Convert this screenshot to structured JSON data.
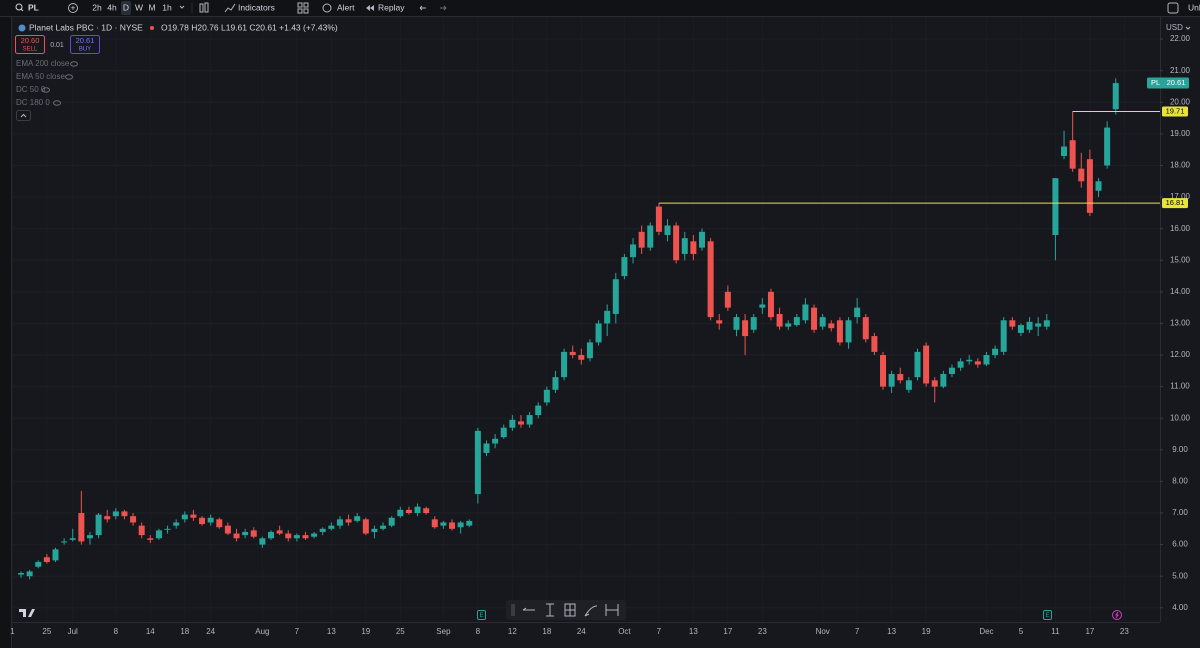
{
  "toolbar": {
    "symbol": "PL",
    "intervals": [
      "2h",
      "4h",
      "D",
      "W",
      "M",
      "1h"
    ],
    "indicators": "Indicators",
    "alert": "Alert",
    "replay": "Replay",
    "unlock": "Unl"
  },
  "legend": {
    "title": "Planet Labs PBC · 1D · NYSE",
    "ohlc": "O19.78 H20.76 L19.61 C20.61 +1.43 (+7.43%)",
    "sell_price": "20.60",
    "sell": "SELL",
    "spread": "0.01",
    "buy_price": "20.61",
    "buy": "BUY",
    "studies": [
      "EMA 200 close",
      "EMA 50 close",
      "DC 50 0",
      "DC 180 0"
    ]
  },
  "currency": "USD",
  "events": {
    "earnings": "E"
  },
  "chart_data": {
    "type": "candlestick",
    "symbol": "PL",
    "up_color": "#26a69a",
    "down_color": "#ef5350",
    "level_color": "#e8e337",
    "grid": true,
    "ylim": [
      3.55,
      22.7
    ],
    "yticks": [
      {
        "value": 4,
        "label": "4.00"
      },
      {
        "value": 5,
        "label": "5.00"
      },
      {
        "value": 6,
        "label": "6.00"
      },
      {
        "value": 7,
        "label": "7.00"
      },
      {
        "value": 8,
        "label": "8.00"
      },
      {
        "value": 9,
        "label": "9.00"
      },
      {
        "value": 10,
        "label": "10.00"
      },
      {
        "value": 11,
        "label": "11.00"
      },
      {
        "value": 12,
        "label": "12.00"
      },
      {
        "value": 13,
        "label": "13.00"
      },
      {
        "value": 14,
        "label": "14.00"
      },
      {
        "value": 15,
        "label": "15.00"
      },
      {
        "value": 16,
        "label": "16.00"
      },
      {
        "value": 17,
        "label": "17.00"
      },
      {
        "value": 18,
        "label": "18.00"
      },
      {
        "value": 19,
        "label": "19.00"
      },
      {
        "value": 20,
        "label": "20.00"
      },
      {
        "value": 21,
        "label": "21.00"
      },
      {
        "value": 22,
        "label": "22.00"
      }
    ],
    "levels": [
      16.81,
      19.71
    ],
    "categories": [
      "1",
      null,
      null,
      null,
      "25",
      null,
      null,
      "Jul",
      null,
      null,
      null,
      null,
      "8",
      null,
      null,
      null,
      "14",
      null,
      null,
      null,
      "18",
      null,
      null,
      "24",
      null,
      null,
      null,
      null,
      null,
      "Aug",
      null,
      null,
      null,
      "7",
      null,
      null,
      null,
      "13",
      null,
      null,
      null,
      "19",
      null,
      null,
      null,
      "25",
      null,
      null,
      null,
      null,
      "Sep",
      null,
      null,
      null,
      "8",
      null,
      null,
      null,
      "12",
      null,
      null,
      null,
      "18",
      null,
      null,
      null,
      "24",
      null,
      null,
      null,
      null,
      "Oct",
      null,
      null,
      null,
      "7",
      null,
      null,
      null,
      "13",
      null,
      null,
      null,
      "17",
      null,
      null,
      null,
      "23",
      null,
      null,
      null,
      null,
      null,
      null,
      "Nov",
      null,
      null,
      null,
      "7",
      null,
      null,
      null,
      "13",
      null,
      null,
      null,
      "19",
      null,
      null,
      null,
      null,
      null,
      null,
      "Dec",
      null,
      null,
      null,
      "5",
      null,
      null,
      null,
      "11",
      null,
      null,
      null,
      "17",
      null,
      null,
      null,
      "23",
      null
    ],
    "ohlc": [
      null,
      [
        5.05,
        5.15,
        4.95,
        5.1
      ],
      [
        5.0,
        5.2,
        4.9,
        5.15
      ],
      [
        5.3,
        5.5,
        5.25,
        5.45
      ],
      [
        5.6,
        5.7,
        5.4,
        5.45
      ],
      [
        5.5,
        5.9,
        5.45,
        5.85
      ],
      [
        6.1,
        6.2,
        6.0,
        6.1
      ],
      [
        6.15,
        6.5,
        6.1,
        6.2
      ],
      [
        7.0,
        7.7,
        6.0,
        6.1
      ],
      [
        6.2,
        6.4,
        6.0,
        6.3
      ],
      [
        6.3,
        7.0,
        6.2,
        6.95
      ],
      [
        6.9,
        7.1,
        6.7,
        6.8
      ],
      [
        6.9,
        7.15,
        6.8,
        7.05
      ],
      [
        7.05,
        7.1,
        6.8,
        6.9
      ],
      [
        6.9,
        7.0,
        6.6,
        6.7
      ],
      [
        6.6,
        6.7,
        6.2,
        6.3
      ],
      [
        6.2,
        6.3,
        6.05,
        6.15
      ],
      [
        6.2,
        6.5,
        6.15,
        6.45
      ],
      [
        6.5,
        6.6,
        6.35,
        6.5
      ],
      [
        6.6,
        6.8,
        6.5,
        6.7
      ],
      [
        6.8,
        7.05,
        6.7,
        6.95
      ],
      [
        6.95,
        7.1,
        6.75,
        6.85
      ],
      [
        6.85,
        6.9,
        6.6,
        6.65
      ],
      [
        6.7,
        6.95,
        6.6,
        6.85
      ],
      [
        6.8,
        6.85,
        6.5,
        6.55
      ],
      [
        6.6,
        6.7,
        6.3,
        6.35
      ],
      [
        6.35,
        6.5,
        6.1,
        6.2
      ],
      [
        6.3,
        6.5,
        6.2,
        6.4
      ],
      [
        6.45,
        6.55,
        6.2,
        6.25
      ],
      [
        6.0,
        6.25,
        5.9,
        6.2
      ],
      [
        6.2,
        6.45,
        6.15,
        6.4
      ],
      [
        6.45,
        6.6,
        6.3,
        6.35
      ],
      [
        6.35,
        6.45,
        6.1,
        6.2
      ],
      [
        6.2,
        6.35,
        6.1,
        6.3
      ],
      [
        6.3,
        6.4,
        6.15,
        6.2
      ],
      [
        6.25,
        6.4,
        6.2,
        6.35
      ],
      [
        6.4,
        6.55,
        6.3,
        6.5
      ],
      [
        6.5,
        6.7,
        6.45,
        6.6
      ],
      [
        6.6,
        6.9,
        6.5,
        6.8
      ],
      [
        6.8,
        6.95,
        6.6,
        6.7
      ],
      [
        6.75,
        7.0,
        6.7,
        6.9
      ],
      [
        6.8,
        6.85,
        6.3,
        6.35
      ],
      [
        6.4,
        6.6,
        6.2,
        6.5
      ],
      [
        6.5,
        6.7,
        6.45,
        6.6
      ],
      [
        6.6,
        6.9,
        6.55,
        6.85
      ],
      [
        6.9,
        7.2,
        6.85,
        7.1
      ],
      [
        7.1,
        7.2,
        6.95,
        7.0
      ],
      [
        7.0,
        7.3,
        6.9,
        7.2
      ],
      [
        7.15,
        7.2,
        6.95,
        7.0
      ],
      [
        6.8,
        6.9,
        6.5,
        6.55
      ],
      [
        6.6,
        6.75,
        6.5,
        6.7
      ],
      [
        6.7,
        6.8,
        6.45,
        6.5
      ],
      [
        6.55,
        6.75,
        6.35,
        6.7
      ],
      [
        6.6,
        6.8,
        6.55,
        6.75
      ],
      [
        7.6,
        9.7,
        7.3,
        9.6
      ],
      [
        8.9,
        9.3,
        8.8,
        9.2
      ],
      [
        9.2,
        9.5,
        9.05,
        9.35
      ],
      [
        9.4,
        9.8,
        9.35,
        9.7
      ],
      [
        9.7,
        10.1,
        9.6,
        9.95
      ],
      [
        9.9,
        10.1,
        9.7,
        9.8
      ],
      [
        9.8,
        10.2,
        9.7,
        10.1
      ],
      [
        10.1,
        10.5,
        10.0,
        10.4
      ],
      [
        10.5,
        11.0,
        10.4,
        10.9
      ],
      [
        10.9,
        11.5,
        10.8,
        11.3
      ],
      [
        11.3,
        12.2,
        11.2,
        12.1
      ],
      [
        12.1,
        12.3,
        11.9,
        12.0
      ],
      [
        12.0,
        12.2,
        11.7,
        11.85
      ],
      [
        11.9,
        12.5,
        11.8,
        12.4
      ],
      [
        12.4,
        13.1,
        12.3,
        13.0
      ],
      [
        13.0,
        13.6,
        12.6,
        13.4
      ],
      [
        13.3,
        14.6,
        13.0,
        14.4
      ],
      [
        14.5,
        15.2,
        14.4,
        15.1
      ],
      [
        15.1,
        15.7,
        14.9,
        15.5
      ],
      [
        15.9,
        16.1,
        15.2,
        15.4
      ],
      [
        15.4,
        16.2,
        15.3,
        16.1
      ],
      [
        16.7,
        16.81,
        15.8,
        15.9
      ],
      [
        15.8,
        16.3,
        15.6,
        16.1
      ],
      [
        16.1,
        16.2,
        14.9,
        15.0
      ],
      [
        15.2,
        15.9,
        15.0,
        15.7
      ],
      [
        15.6,
        15.8,
        15.0,
        15.2
      ],
      [
        15.4,
        16.0,
        15.3,
        15.9
      ],
      [
        15.6,
        15.7,
        13.1,
        13.2
      ],
      [
        13.1,
        13.3,
        12.8,
        13.0
      ],
      [
        14.0,
        14.2,
        13.4,
        13.5
      ],
      [
        12.8,
        13.3,
        12.6,
        13.2
      ],
      [
        13.1,
        13.3,
        12.0,
        12.6
      ],
      [
        12.8,
        13.3,
        12.7,
        13.2
      ],
      [
        13.5,
        13.8,
        13.3,
        13.6
      ],
      [
        14.0,
        14.1,
        13.1,
        13.2
      ],
      [
        13.3,
        13.5,
        12.8,
        12.9
      ],
      [
        12.9,
        13.1,
        12.8,
        13.0
      ],
      [
        12.95,
        13.3,
        12.9,
        13.2
      ],
      [
        13.1,
        13.8,
        13.0,
        13.6
      ],
      [
        13.5,
        13.6,
        12.7,
        12.8
      ],
      [
        12.9,
        13.3,
        12.8,
        13.2
      ],
      [
        13.0,
        13.1,
        12.75,
        12.85
      ],
      [
        13.1,
        13.2,
        12.3,
        12.4
      ],
      [
        12.4,
        13.2,
        12.2,
        13.1
      ],
      [
        13.2,
        13.8,
        13.0,
        13.5
      ],
      [
        13.2,
        13.3,
        12.4,
        12.5
      ],
      [
        12.6,
        12.7,
        12.0,
        12.1
      ],
      [
        12.0,
        12.1,
        10.9,
        11.0
      ],
      [
        11.0,
        11.5,
        10.8,
        11.4
      ],
      [
        11.4,
        11.6,
        11.1,
        11.2
      ],
      [
        10.9,
        11.3,
        10.8,
        11.2
      ],
      [
        11.3,
        12.2,
        11.2,
        12.1
      ],
      [
        12.3,
        12.4,
        11.0,
        11.1
      ],
      [
        11.2,
        11.3,
        10.5,
        11.0
      ],
      [
        11.0,
        11.5,
        10.95,
        11.4
      ],
      [
        11.4,
        11.7,
        11.3,
        11.6
      ],
      [
        11.6,
        11.9,
        11.5,
        11.8
      ],
      [
        11.8,
        12.0,
        11.7,
        11.85
      ],
      [
        11.8,
        11.9,
        11.6,
        11.7
      ],
      [
        11.7,
        12.1,
        11.65,
        12.0
      ],
      [
        12.0,
        12.3,
        11.9,
        12.2
      ],
      [
        12.1,
        13.2,
        12.0,
        13.1
      ],
      [
        13.1,
        13.2,
        12.8,
        12.9
      ],
      [
        12.7,
        13.0,
        12.6,
        12.95
      ],
      [
        12.8,
        13.2,
        12.7,
        13.05
      ],
      [
        12.9,
        13.2,
        12.6,
        13.0
      ],
      [
        12.9,
        13.3,
        12.8,
        13.1
      ],
      [
        15.8,
        17.6,
        15.0,
        17.6
      ],
      [
        18.3,
        19.1,
        18.2,
        18.6
      ],
      [
        18.8,
        19.71,
        17.8,
        17.9
      ],
      [
        17.9,
        18.4,
        17.3,
        17.5
      ],
      [
        18.2,
        18.5,
        16.4,
        16.5
      ],
      [
        17.2,
        17.6,
        17.0,
        17.5
      ],
      [
        18.0,
        19.4,
        17.9,
        19.2
      ],
      [
        19.78,
        20.76,
        19.61,
        20.61
      ],
      null,
      null
    ]
  }
}
